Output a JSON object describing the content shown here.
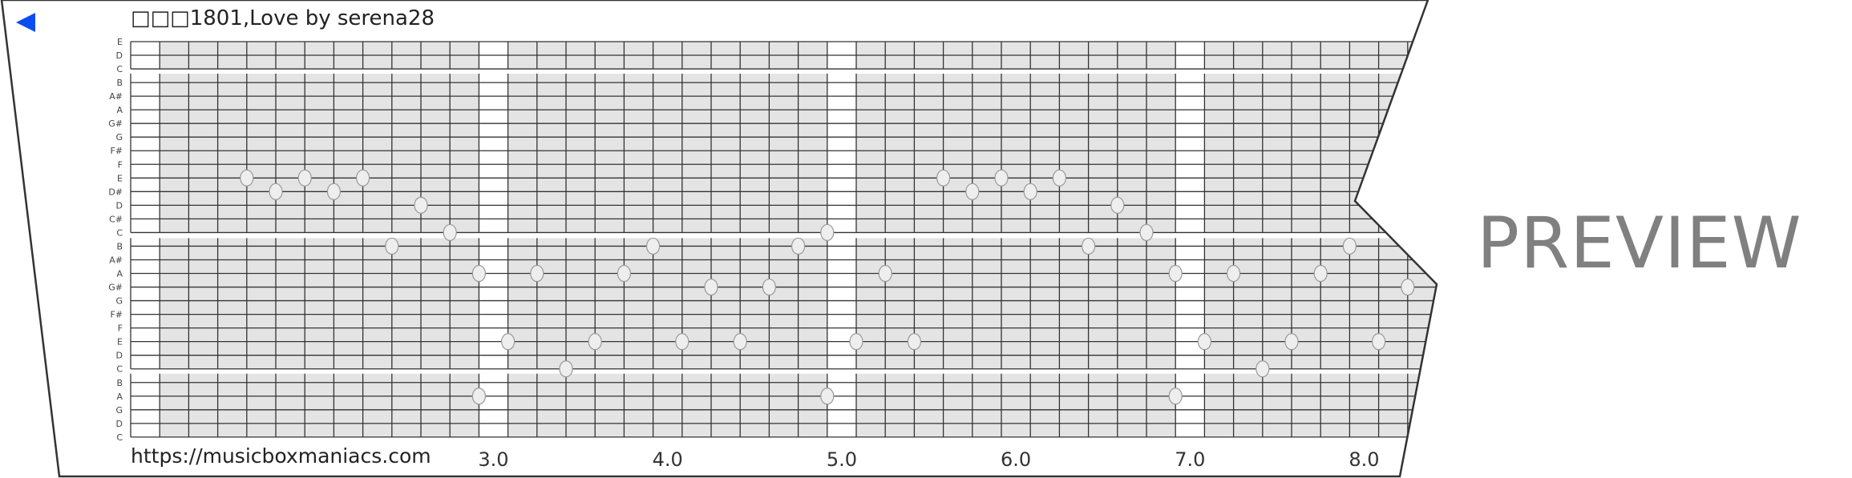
{
  "header": {
    "title": "□□□1801,Love by serena28",
    "back_icon": "back-triangle-icon",
    "back_color": "#0a4df0"
  },
  "footer": {
    "url": "https://musicboxmaniacs.com"
  },
  "watermark": "PREVIEW",
  "strip": {
    "pitches": [
      "E",
      "D",
      "C",
      "B",
      "A#",
      "A",
      "G#",
      "G",
      "F#",
      "F",
      "E",
      "D#",
      "D",
      "C#",
      "C",
      "B",
      "A#",
      "A",
      "G#",
      "G",
      "F#",
      "F",
      "E",
      "D",
      "C",
      "B",
      "A",
      "G",
      "D",
      "C"
    ],
    "time_labels": [
      {
        "label": "3.0",
        "time": 3.0
      },
      {
        "label": "4.0",
        "time": 4.0
      },
      {
        "label": "5.0",
        "time": 5.0
      },
      {
        "label": "6.0",
        "time": 6.0
      },
      {
        "label": "7.0",
        "time": 7.0
      },
      {
        "label": "8.0",
        "time": 8.0
      }
    ],
    "steps_per_beat": 6,
    "start_time": 1.0,
    "notes": [
      {
        "step": 4,
        "row": 10
      },
      {
        "step": 5,
        "row": 11
      },
      {
        "step": 6,
        "row": 10
      },
      {
        "step": 7,
        "row": 11
      },
      {
        "step": 8,
        "row": 10
      },
      {
        "step": 9,
        "row": 15
      },
      {
        "step": 10,
        "row": 12
      },
      {
        "step": 11,
        "row": 14
      },
      {
        "step": 12,
        "row": 17
      },
      {
        "step": 12,
        "row": 26
      },
      {
        "step": 13,
        "row": 22
      },
      {
        "step": 14,
        "row": 17
      },
      {
        "step": 15,
        "row": 24
      },
      {
        "step": 16,
        "row": 22
      },
      {
        "step": 17,
        "row": 17
      },
      {
        "step": 18,
        "row": 15
      },
      {
        "step": 19,
        "row": 22
      },
      {
        "step": 20,
        "row": 18
      },
      {
        "step": 21,
        "row": 22
      },
      {
        "step": 22,
        "row": 18
      },
      {
        "step": 23,
        "row": 15
      },
      {
        "step": 24,
        "row": 14
      },
      {
        "step": 24,
        "row": 26
      },
      {
        "step": 25,
        "row": 22
      },
      {
        "step": 26,
        "row": 17
      },
      {
        "step": 27,
        "row": 22
      },
      {
        "step": 28,
        "row": 10
      },
      {
        "step": 29,
        "row": 11
      },
      {
        "step": 30,
        "row": 10
      },
      {
        "step": 31,
        "row": 11
      },
      {
        "step": 32,
        "row": 10
      },
      {
        "step": 33,
        "row": 15
      },
      {
        "step": 34,
        "row": 12
      },
      {
        "step": 35,
        "row": 14
      },
      {
        "step": 36,
        "row": 17
      },
      {
        "step": 36,
        "row": 26
      },
      {
        "step": 37,
        "row": 22
      },
      {
        "step": 38,
        "row": 17
      },
      {
        "step": 39,
        "row": 24
      },
      {
        "step": 40,
        "row": 22
      },
      {
        "step": 41,
        "row": 17
      },
      {
        "step": 42,
        "row": 15
      },
      {
        "step": 43,
        "row": 22
      },
      {
        "step": 44,
        "row": 18
      }
    ],
    "colors": {
      "cell": "#e4e4e4",
      "line": "#333333",
      "note": "#eeeeee"
    }
  }
}
